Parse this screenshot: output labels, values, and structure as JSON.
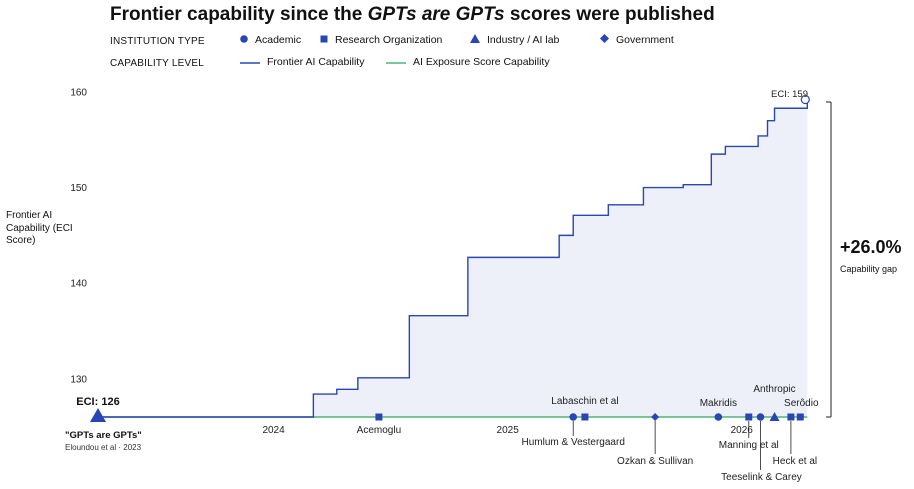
{
  "title": {
    "prefix": "Frontier capability since the ",
    "italic": "GPTs are GPTs",
    "suffix": " scores were published"
  },
  "legend": {
    "institution_heading": "INSTITUTION TYPE",
    "institution_items": [
      {
        "label": "Academic",
        "marker": "circle"
      },
      {
        "label": "Research Organization",
        "marker": "square"
      },
      {
        "label": "Industry / AI lab",
        "marker": "triangle"
      },
      {
        "label": "Government",
        "marker": "diamond"
      }
    ],
    "capability_heading": "CAPABILITY LEVEL",
    "capability_items": [
      {
        "label": "Frontier AI Capability",
        "color": "#2846b4"
      },
      {
        "label": "AI Exposure Score Capability",
        "color": "#4cb676"
      }
    ]
  },
  "colors": {
    "frontier": "#2846b4",
    "exposure": "#4cb676",
    "fill": "#eef0f9",
    "marker": "#2846b4"
  },
  "chart_data": {
    "type": "line",
    "title": "Frontier capability since the GPTs are GPTs scores were published",
    "ylabel": "Frontier AI Capability (ECI Score)",
    "ylim": [
      126,
      160
    ],
    "xlim": [
      2023.25,
      2026.33
    ],
    "y_ticks": [
      130,
      140,
      150,
      160
    ],
    "x_ticks": [
      {
        "value": 2024.0,
        "label": "2024"
      },
      {
        "value": 2025.0,
        "label": "2025"
      },
      {
        "value": 2026.0,
        "label": "2026"
      }
    ],
    "grid": false,
    "series": [
      {
        "name": "Frontier AI Capability",
        "style": "step-after",
        "x": [
          2023.25,
          2024.17,
          2024.27,
          2024.36,
          2024.58,
          2024.83,
          2025.22,
          2025.28,
          2025.43,
          2025.58,
          2025.75,
          2025.87,
          2025.93,
          2026.07,
          2026.11,
          2026.14,
          2026.28
        ],
        "y": [
          126,
          128.4,
          128.9,
          130.1,
          136.6,
          142.7,
          145.0,
          147.1,
          148.2,
          150.0,
          150.3,
          153.5,
          154.3,
          155.4,
          157.0,
          158.3,
          159
        ]
      },
      {
        "name": "AI Exposure Score Capability",
        "style": "flat",
        "x": [
          2023.25,
          2026.28
        ],
        "y": [
          126,
          126
        ]
      }
    ],
    "baseline": {
      "label": "ECI: 126",
      "value": 126,
      "name": "\"GPTs are GPTs\"",
      "sub": "Eloundou et al · 2023"
    },
    "endpoint": {
      "label": "ECI: 159",
      "value": 159
    },
    "gap": {
      "value": "+26.0%",
      "label": "Capability gap"
    },
    "publications": [
      {
        "name": "Acemoglu",
        "x": 2024.45,
        "type": "square"
      },
      {
        "name": "Humlum & Vestergaard",
        "x": 2025.28,
        "type": "circle"
      },
      {
        "name": "Labaschin et al",
        "x": 2025.33,
        "type": "square"
      },
      {
        "name": "Ozkan & Sullivan",
        "x": 2025.63,
        "type": "diamond"
      },
      {
        "name": "Makridis",
        "x": 2025.9,
        "type": "circle"
      },
      {
        "name": "Manning et al",
        "x": 2026.03,
        "type": "square"
      },
      {
        "name": "Teeselink & Carey",
        "x": 2026.08,
        "type": "circle"
      },
      {
        "name": "Anthropic",
        "x": 2026.14,
        "type": "triangle"
      },
      {
        "name": "Heck et al",
        "x": 2026.21,
        "type": "square"
      },
      {
        "name": "Serôdio",
        "x": 2026.25,
        "type": "square"
      }
    ]
  }
}
